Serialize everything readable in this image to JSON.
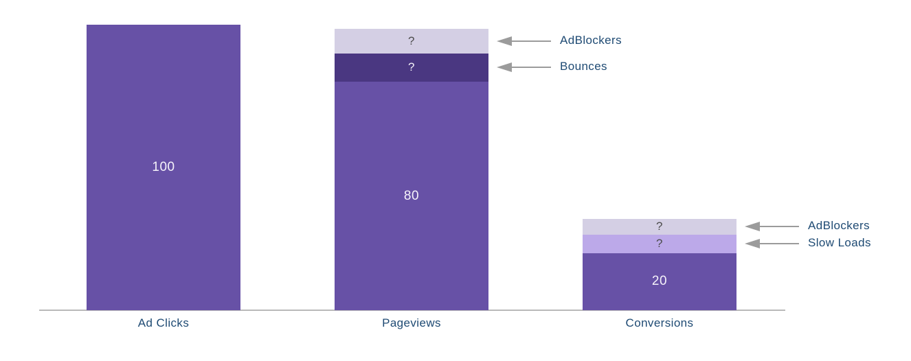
{
  "chart_data": {
    "type": "bar",
    "subtype": "stacked_funnel",
    "title": "",
    "xlabel": "",
    "ylabel": "",
    "ylim": [
      0,
      100
    ],
    "grid": false,
    "y_axis_shown": false,
    "categories": [
      "Ad Clicks",
      "Pageviews",
      "Conversions"
    ],
    "bars": [
      {
        "category": "Ad Clicks",
        "segments": [
          {
            "name": "main",
            "label": "100",
            "value": 100,
            "estimated": false,
            "color": "#6751A6",
            "label_color": "#F6F3FA",
            "label_size": "big"
          }
        ]
      },
      {
        "category": "Pageviews",
        "segments": [
          {
            "name": "main",
            "label": "80",
            "value": 80,
            "estimated": false,
            "color": "#6751A6",
            "label_color": "#F6F3FA",
            "label_size": "big"
          },
          {
            "name": "bounces",
            "label": "?",
            "value": 10,
            "estimated": true,
            "color": "#4A3781",
            "label_color": "#F2EFF7",
            "label_size": "small"
          },
          {
            "name": "adblockers",
            "label": "?",
            "value": 8.5,
            "estimated": true,
            "color": "#D4CFE4",
            "label_color": "#4D4D4D",
            "label_size": "small"
          }
        ]
      },
      {
        "category": "Conversions",
        "segments": [
          {
            "name": "main",
            "label": "20",
            "value": 20,
            "estimated": false,
            "color": "#6751A6",
            "label_color": "#F6F3FA",
            "label_size": "big"
          },
          {
            "name": "slow-loads",
            "label": "?",
            "value": 6.5,
            "estimated": true,
            "color": "#BCA9E9",
            "label_color": "#4D4D4D",
            "label_size": "small"
          },
          {
            "name": "adblockers",
            "label": "?",
            "value": 5.5,
            "estimated": true,
            "color": "#D4CFE4",
            "label_color": "#4D4D4D",
            "label_size": "small"
          }
        ]
      }
    ],
    "annotations": [
      {
        "label": "AdBlockers",
        "bar": 1,
        "segment": 2
      },
      {
        "label": "Bounces",
        "bar": 1,
        "segment": 1
      },
      {
        "label": "AdBlockers",
        "bar": 2,
        "segment": 2
      },
      {
        "label": "Slow Loads",
        "bar": 2,
        "segment": 1
      }
    ],
    "legend": null,
    "colors": {
      "bar_main": "#6751A6",
      "bar_dark": "#4A3781",
      "bar_light": "#D4CFE4",
      "bar_medium": "#BCA9E9",
      "axis_line": "#B9B9B9",
      "arrow": "#9B9B9B",
      "category_text": "#1E4A73",
      "annotation_text": "#1E4A73"
    }
  }
}
